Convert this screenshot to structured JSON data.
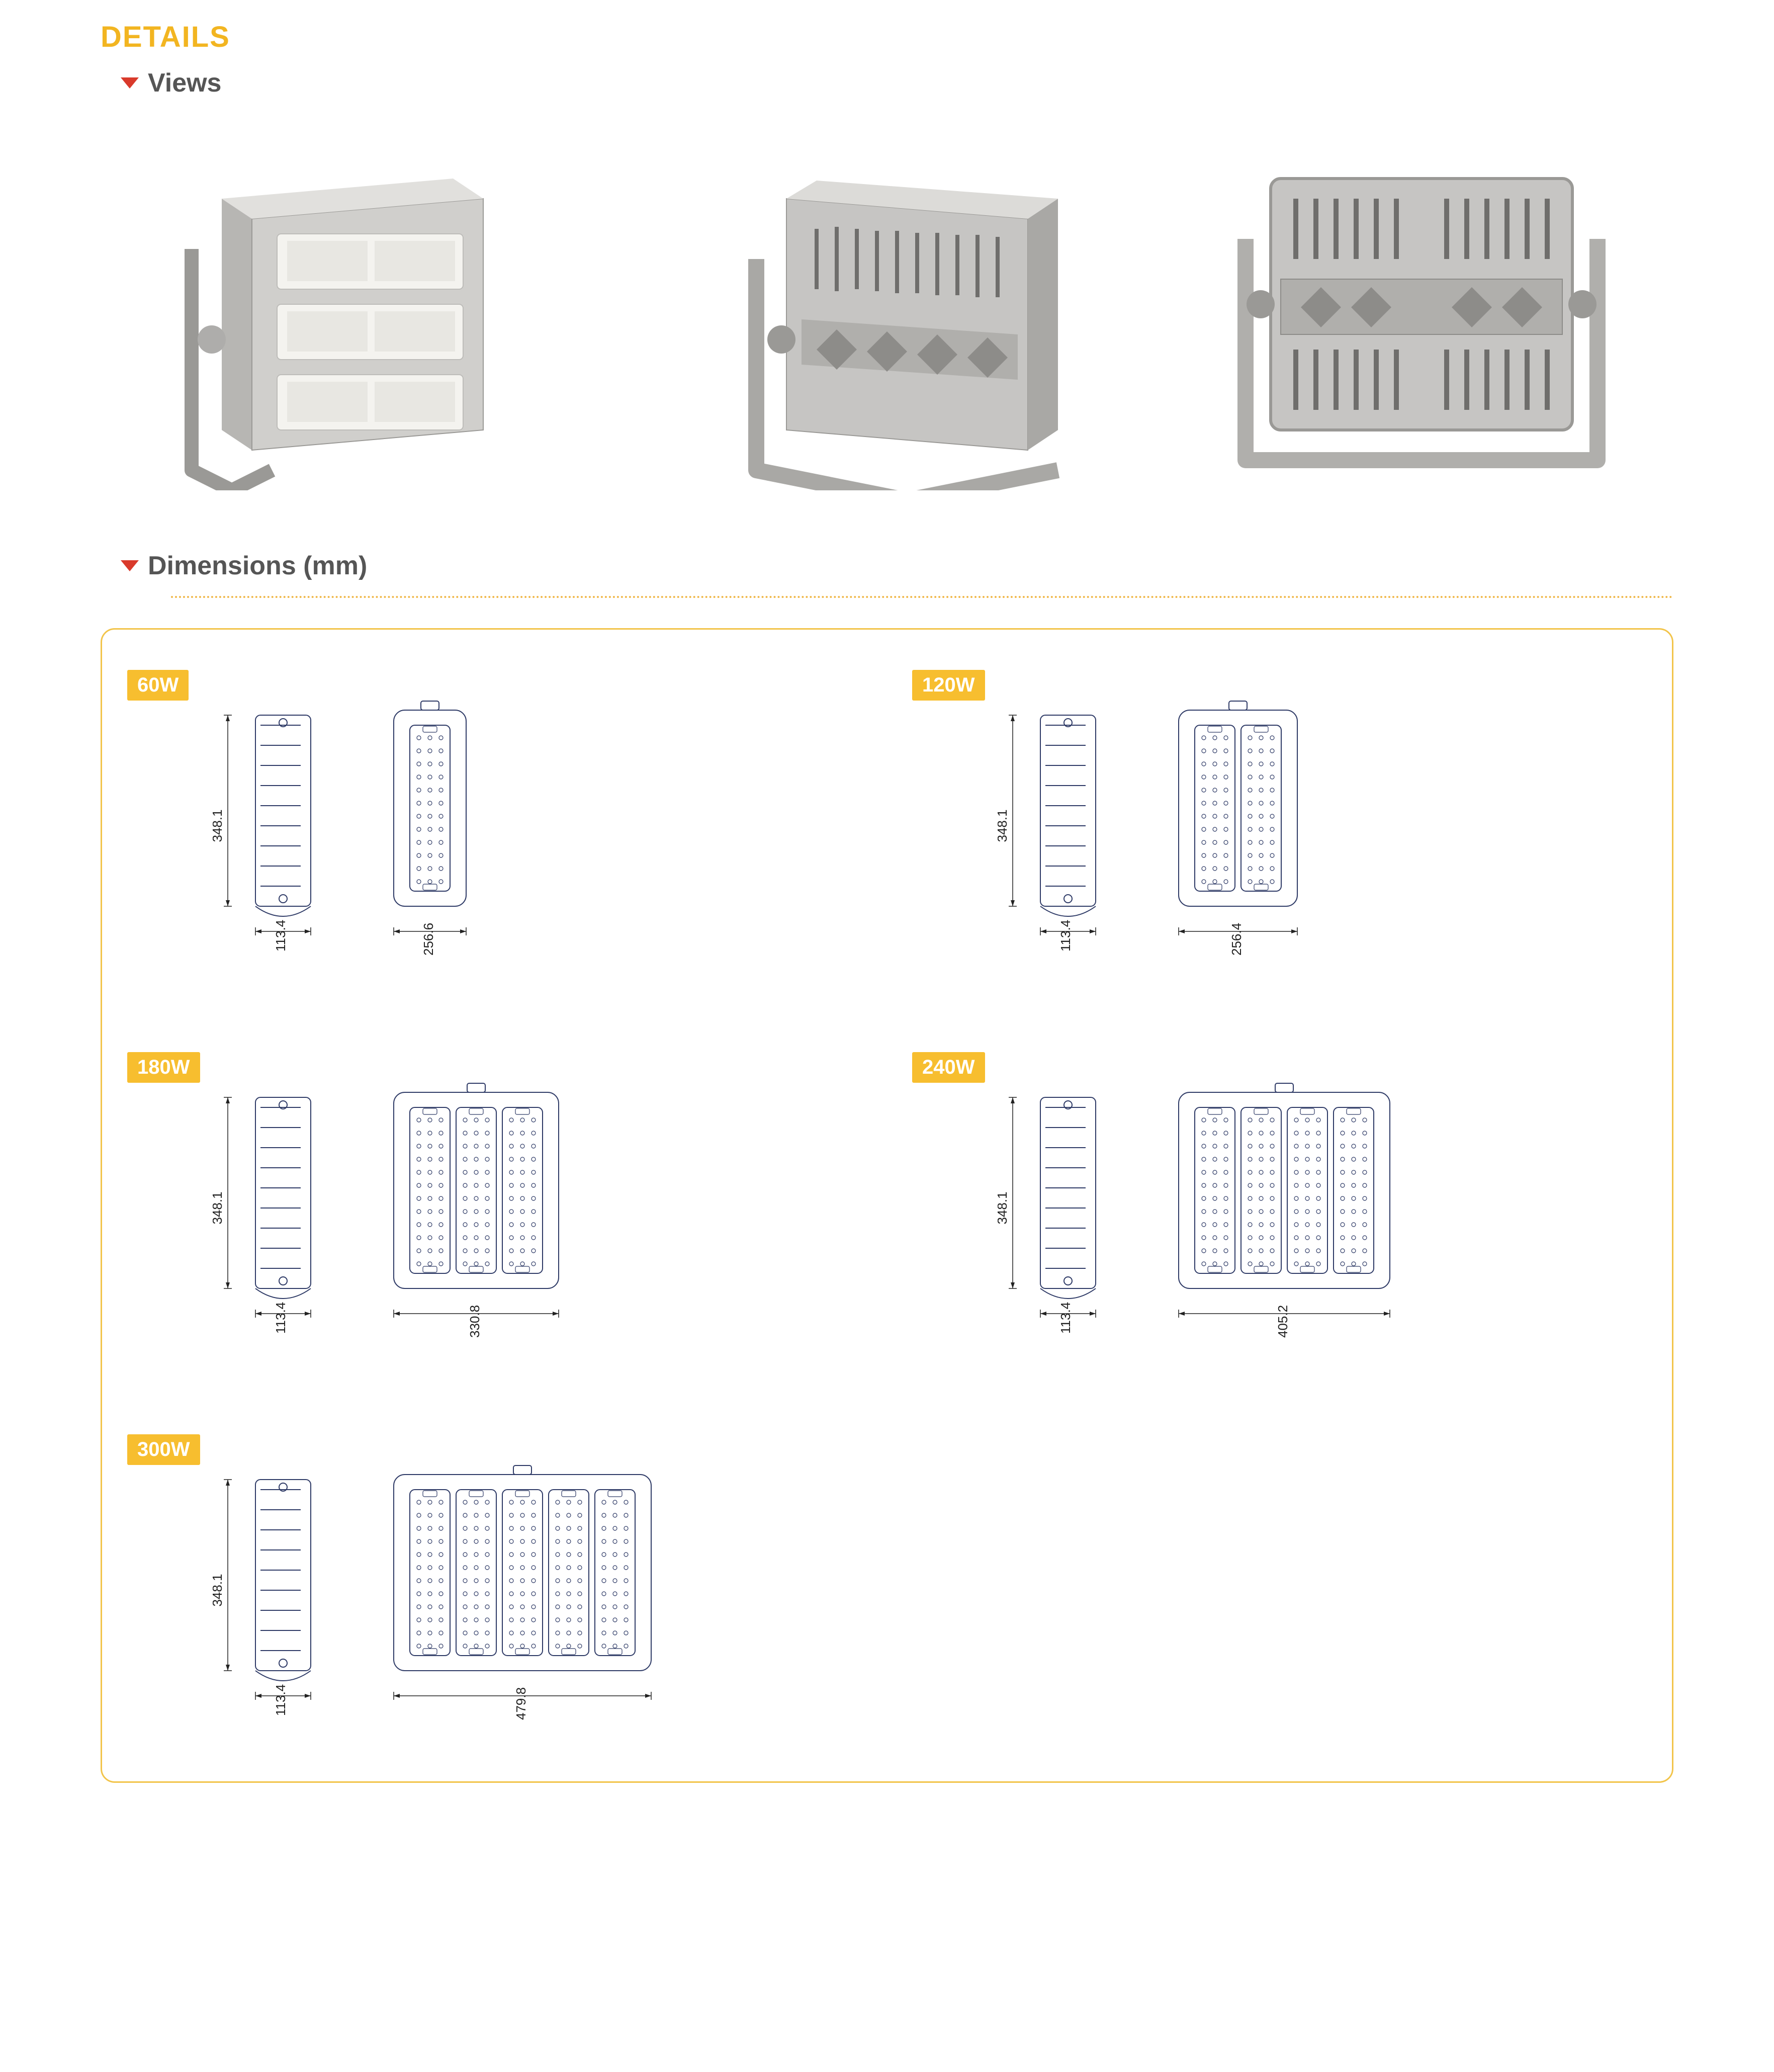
{
  "colors": {
    "accent": "#f2b521",
    "accent_fill": "#f7be2f",
    "triangle": "#d93a2b",
    "text_heading": "#555555",
    "outline": "#2e3a66",
    "product_body": "#c6c5c3",
    "product_body_dark": "#9f9e9b",
    "product_led": "#f4f3ef",
    "bg": "#ffffff"
  },
  "details_title": "DETAILS",
  "sections": {
    "views": {
      "label": "Views"
    },
    "dimensions": {
      "label": "Dimensions (mm)"
    }
  },
  "views": [
    {
      "name": "front-angled"
    },
    {
      "name": "rear-angled"
    },
    {
      "name": "rear-flat"
    }
  ],
  "variants": [
    {
      "watt_label": "60W",
      "height": "348.1",
      "depth": "113.4",
      "width": "256.6",
      "modules": 1
    },
    {
      "watt_label": "120W",
      "height": "348.1",
      "depth": "113.4",
      "width": "256.4",
      "modules": 2
    },
    {
      "watt_label": "180W",
      "height": "348.1",
      "depth": "113.4",
      "width": "330.8",
      "modules": 3
    },
    {
      "watt_label": "240W",
      "height": "348.1",
      "depth": "113.4",
      "width": "405.2",
      "modules": 4
    },
    {
      "watt_label": "300W",
      "height": "348.1",
      "depth": "113.4",
      "width": "479.8",
      "modules": 5
    }
  ],
  "diagram_style": {
    "stroke": "#2e3a66",
    "stroke_width": 2,
    "dim_line_stroke": "#222222",
    "corner_radius": 18
  }
}
